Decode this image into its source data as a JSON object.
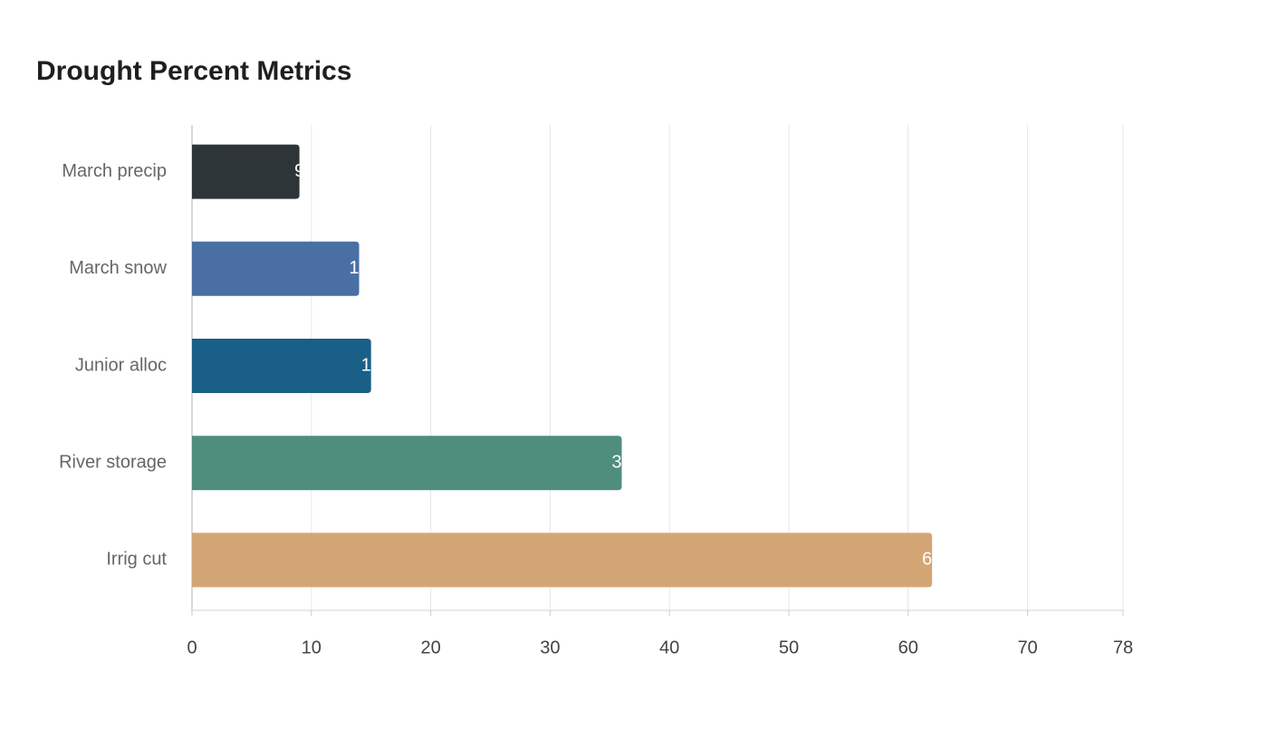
{
  "chart_data": {
    "type": "bar",
    "orientation": "horizontal",
    "title": "Drought Percent Metrics",
    "categories": [
      "March precip",
      "March snow",
      "Junior alloc",
      "River storage",
      "Irrig cut"
    ],
    "values": [
      9,
      14,
      15,
      36,
      62
    ],
    "colors": [
      "#2e3538",
      "#4a6fa5",
      "#1a5f87",
      "#4f8d7c",
      "#d4a574"
    ],
    "xlim": [
      0,
      78
    ],
    "xticks": [
      0,
      10,
      20,
      30,
      40,
      50,
      60,
      70,
      78
    ],
    "grid": true
  }
}
